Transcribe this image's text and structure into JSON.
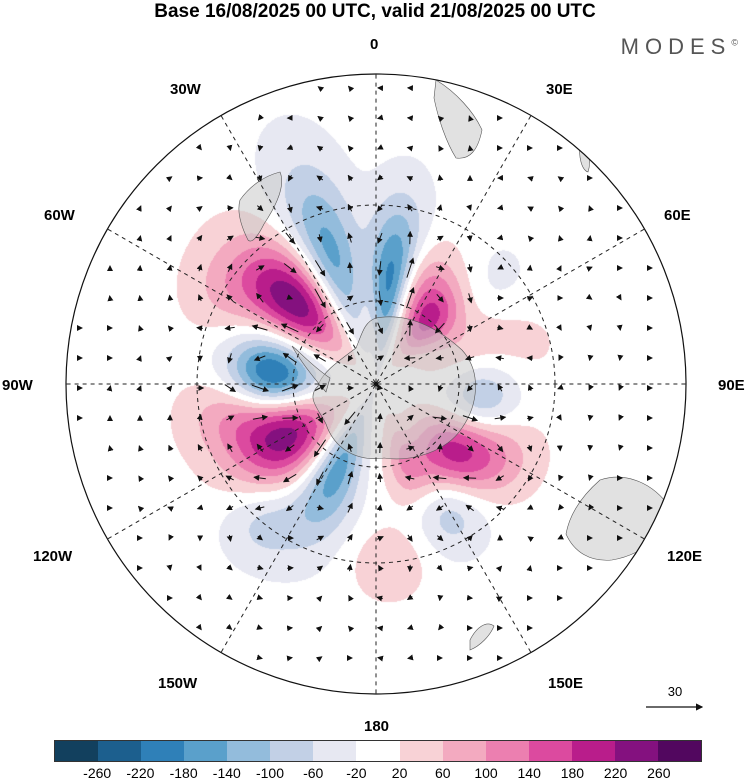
{
  "title": "Base 16/08/2025 00 UTC, valid 21/08/2025 00 UTC",
  "brand": "MODES",
  "brand_mark": "©",
  "longitude_labels": {
    "lon_0": "0",
    "lon_30e": "30E",
    "lon_60e": "60E",
    "lon_90e": "90E",
    "lon_120e": "120E",
    "lon_150e": "150E",
    "lon_180": "180",
    "lon_150w": "150W",
    "lon_120w": "120W",
    "lon_90w": "90W",
    "lon_60w": "60W",
    "lon_30w": "30W"
  },
  "reference_vector": {
    "value": "30"
  },
  "colorbar": {
    "colors": [
      "#12405e",
      "#1c5f8e",
      "#2f80b8",
      "#5aa0cb",
      "#93bcdc",
      "#c2d0e6",
      "#e7e8f2",
      "#ffffff",
      "#f8d2d6",
      "#f3aac0",
      "#ec7fb0",
      "#dc4a9f",
      "#b91d8b",
      "#84117f",
      "#52075f"
    ],
    "ticks": [
      "-260",
      "-220",
      "-180",
      "-140",
      "-100",
      "-60",
      "-20",
      "20",
      "60",
      "100",
      "140",
      "180",
      "220",
      "260"
    ]
  },
  "anomaly_centers": [
    {
      "lon": 8,
      "lat": -52,
      "value": -230,
      "sx": 7,
      "sy": 16
    },
    {
      "lon": 35,
      "lat": -52,
      "value": 150,
      "sx": 16,
      "sy": 11
    },
    {
      "lon": 48,
      "lat": -45,
      "value": -110,
      "sx": 12,
      "sy": 12
    },
    {
      "lon": 40,
      "lat": -62,
      "value": 120,
      "sx": 9,
      "sy": 9
    },
    {
      "lon": 70,
      "lat": -50,
      "value": 75,
      "sx": 16,
      "sy": 14
    },
    {
      "lon": 100,
      "lat": -52,
      "value": -150,
      "sx": 16,
      "sy": 9
    },
    {
      "lon": 132,
      "lat": -55,
      "value": 180,
      "sx": 15,
      "sy": 10
    },
    {
      "lon": 120,
      "lat": -45,
      "value": 110,
      "sx": 12,
      "sy": 10
    },
    {
      "lon": 150,
      "lat": -40,
      "value": -100,
      "sx": 9,
      "sy": 9
    },
    {
      "lon": 160,
      "lat": -60,
      "value": 80,
      "sx": 8,
      "sy": 10
    },
    {
      "lon": -155,
      "lat": -55,
      "value": -170,
      "sx": 9,
      "sy": 16
    },
    {
      "lon": -120,
      "lat": -52,
      "value": 240,
      "sx": 13,
      "sy": 12
    },
    {
      "lon": -100,
      "lat": -40,
      "value": 90,
      "sx": 10,
      "sy": 10
    },
    {
      "lon": -85,
      "lat": -52,
      "value": -240,
      "sx": 12,
      "sy": 10
    },
    {
      "lon": -45,
      "lat": -48,
      "value": 255,
      "sx": 11,
      "sy": 14
    },
    {
      "lon": -20,
      "lat": -42,
      "value": -170,
      "sx": 8,
      "sy": 18
    },
    {
      "lon": -140,
      "lat": -30,
      "value": -70,
      "sx": 8,
      "sy": 8
    },
    {
      "lon": 176,
      "lat": -30,
      "value": 60,
      "sx": 8,
      "sy": 7
    },
    {
      "lon": -60,
      "lat": -30,
      "value": 40,
      "sx": 10,
      "sy": 8
    }
  ]
}
